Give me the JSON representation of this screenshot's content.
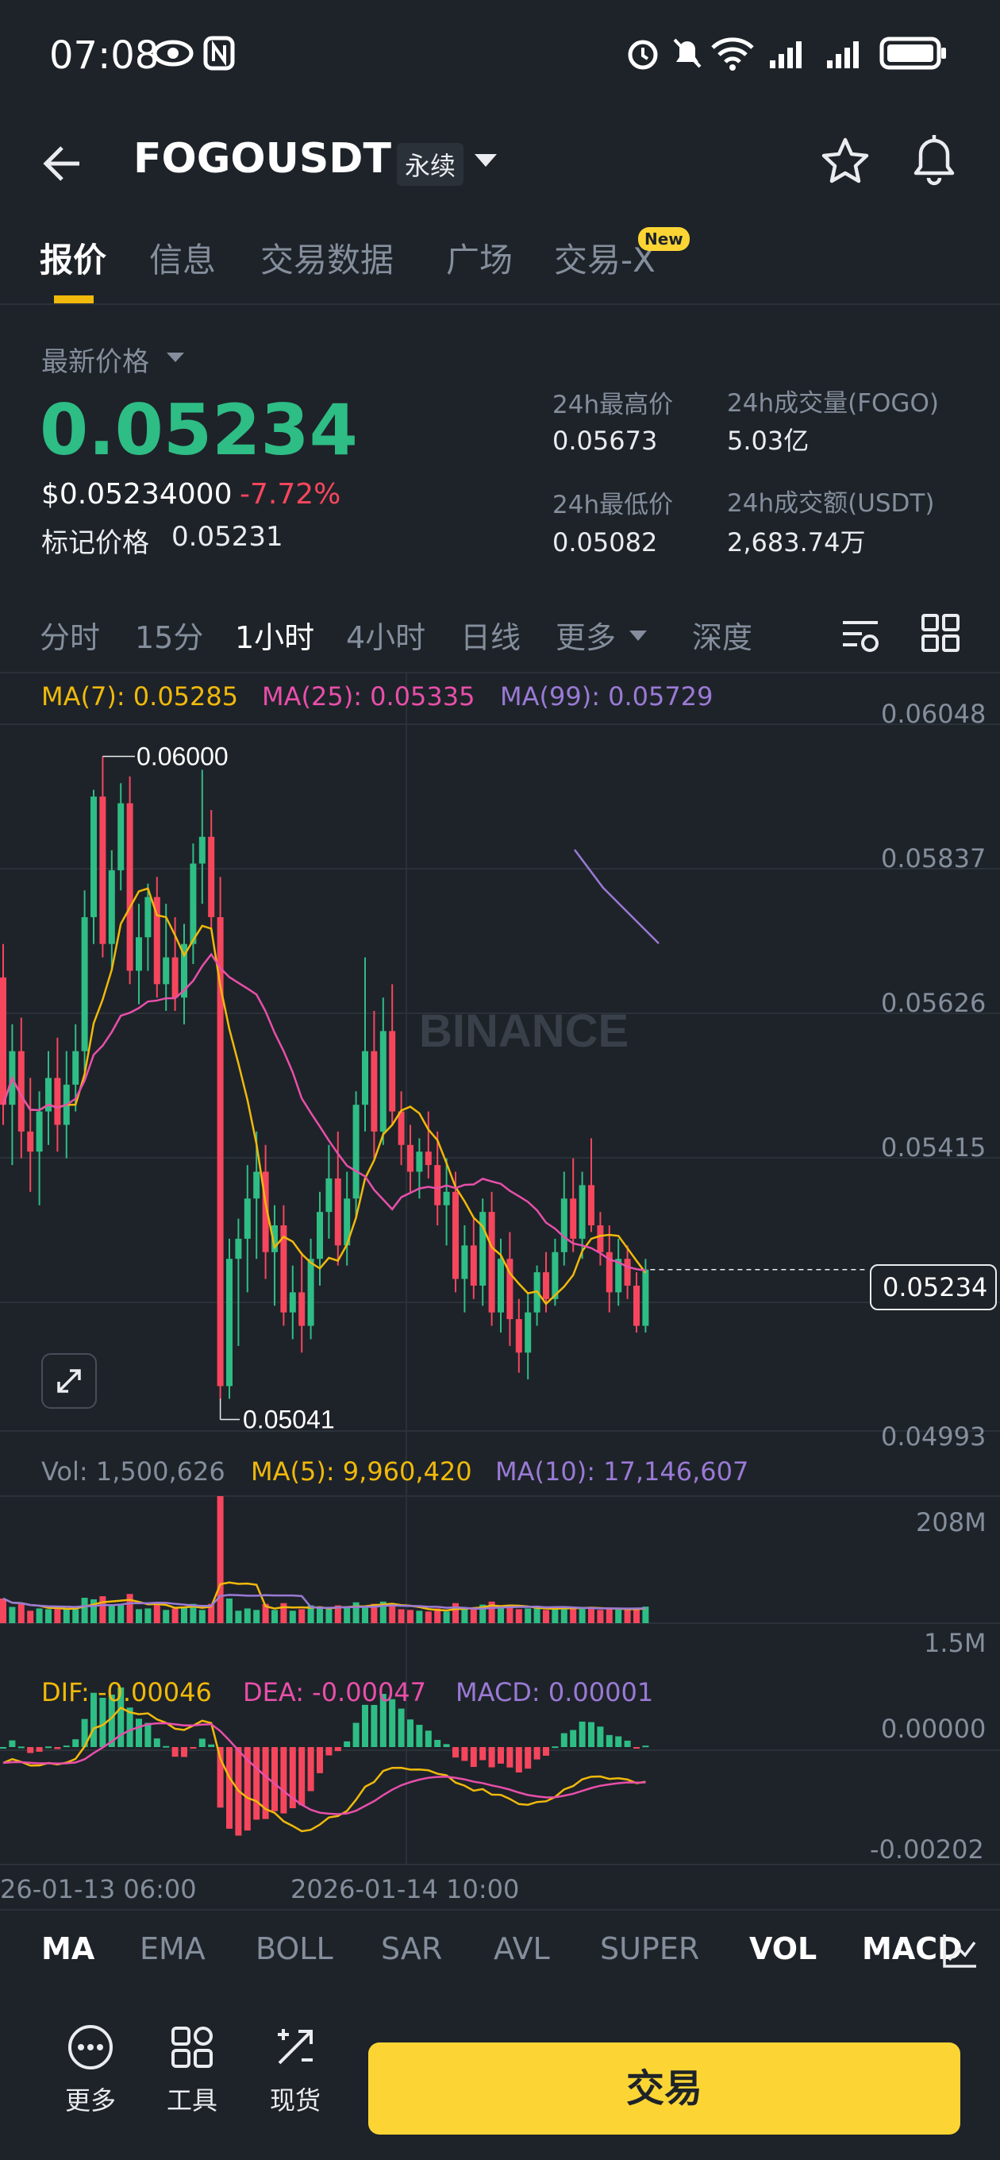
{
  "status_bar": {
    "time": "07:08"
  },
  "header": {
    "title": "FOGOUSDT",
    "badge": "永续"
  },
  "tabs": [
    {
      "label": "报价"
    },
    {
      "label": "信息"
    },
    {
      "label": "交易数据"
    },
    {
      "label": "广场"
    },
    {
      "label": "交易-X"
    }
  ],
  "new_badge": "New",
  "price": {
    "label": "最新价格",
    "last": "0.05234",
    "usd": "$0.05234000",
    "change": "-7.72%",
    "mark_label": "标记价格",
    "mark_value": "0.05231"
  },
  "stats": {
    "high_label": "24h最高价",
    "high_value": "0.05673",
    "low_label": "24h最低价",
    "low_value": "0.05082",
    "vol_label": "24h成交量(FOGO)",
    "vol_value": "5.03亿",
    "turnover_label": "24h成交额(USDT)",
    "turnover_value": "2,683.74万"
  },
  "intervals": [
    "分时",
    "15分",
    "1小时",
    "4小时",
    "日线",
    "更多",
    "深度"
  ],
  "ma_legend": {
    "ma7": "MA(7): 0.05285",
    "ma25": "MA(25): 0.05335",
    "ma99": "MA(99): 0.05729"
  },
  "price_axis": [
    "0.06048",
    "0.05837",
    "0.05626",
    "0.05415",
    "0.05234",
    "0.04993"
  ],
  "chart_labels": {
    "high": "0.06000",
    "low": "0.05041",
    "watermark": "BINANCE"
  },
  "vol_legend": {
    "vol": "Vol: 1,500,626",
    "ma5": "MA(5): 9,960,420",
    "ma10": "MA(10): 17,146,607"
  },
  "vol_axis": [
    "208M",
    "1.5M"
  ],
  "macd_legend": {
    "dif": "DIF: -0.00046",
    "dea": "DEA: -0.00047",
    "macd": "MACD: 0.00001"
  },
  "macd_axis": [
    "0.00000",
    "-0.00202"
  ],
  "time_axis": [
    "26-01-13 06:00",
    "2026-01-14 10:00"
  ],
  "indicators": [
    "MA",
    "EMA",
    "BOLL",
    "SAR",
    "AVL",
    "SUPER",
    "VOL",
    "MACD"
  ],
  "bottom_nav": {
    "more": "更多",
    "tools": "工具",
    "spot": "现货",
    "trade": "交易"
  },
  "colors": {
    "up": "#2ebd85",
    "down": "#f6465d",
    "ma7": "#f0b90b",
    "ma25": "#e84faa",
    "ma99": "#9a7ad6",
    "accent": "#fcd535"
  },
  "chart_data": {
    "type": "candlestick",
    "interval": "1h",
    "price_range": [
      0.04993,
      0.06048
    ],
    "candles": [
      [
        0.0567,
        0.0572,
        0.0545,
        0.0548
      ],
      [
        0.0548,
        0.056,
        0.0539,
        0.0556
      ],
      [
        0.0556,
        0.0561,
        0.054,
        0.0544
      ],
      [
        0.0544,
        0.0552,
        0.0535,
        0.0541
      ],
      [
        0.0541,
        0.055,
        0.0533,
        0.0547
      ],
      [
        0.0547,
        0.0556,
        0.0542,
        0.0552
      ],
      [
        0.0552,
        0.0558,
        0.0541,
        0.0545
      ],
      [
        0.0545,
        0.0556,
        0.054,
        0.0551
      ],
      [
        0.0551,
        0.056,
        0.0547,
        0.0556
      ],
      [
        0.0556,
        0.058,
        0.0553,
        0.0576
      ],
      [
        0.0576,
        0.0595,
        0.0572,
        0.0594
      ],
      [
        0.0594,
        0.06,
        0.057,
        0.0572
      ],
      [
        0.0572,
        0.0586,
        0.0568,
        0.0583
      ],
      [
        0.0583,
        0.0596,
        0.058,
        0.0593
      ],
      [
        0.0593,
        0.0597,
        0.0566,
        0.0568
      ],
      [
        0.0568,
        0.0578,
        0.0563,
        0.0573
      ],
      [
        0.0573,
        0.0581,
        0.0568,
        0.0579
      ],
      [
        0.0579,
        0.0582,
        0.0564,
        0.0566
      ],
      [
        0.0566,
        0.0578,
        0.0562,
        0.057
      ],
      [
        0.057,
        0.0576,
        0.0562,
        0.0564
      ],
      [
        0.0564,
        0.0575,
        0.056,
        0.0572
      ],
      [
        0.0572,
        0.0587,
        0.0569,
        0.0584
      ],
      [
        0.0584,
        0.0598,
        0.0578,
        0.0588
      ],
      [
        0.0588,
        0.0592,
        0.0574,
        0.0576
      ],
      [
        0.0576,
        0.0582,
        0.0504,
        0.0506
      ],
      [
        0.0506,
        0.0528,
        0.05041,
        0.0525
      ],
      [
        0.0525,
        0.0531,
        0.0512,
        0.0528
      ],
      [
        0.0528,
        0.0539,
        0.052,
        0.0534
      ],
      [
        0.0534,
        0.0544,
        0.0525,
        0.0538
      ],
      [
        0.0538,
        0.0542,
        0.0522,
        0.0526
      ],
      [
        0.0526,
        0.0533,
        0.0518,
        0.053
      ],
      [
        0.053,
        0.0533,
        0.0515,
        0.0517
      ],
      [
        0.0517,
        0.0524,
        0.0513,
        0.052
      ],
      [
        0.052,
        0.0526,
        0.0511,
        0.0515
      ],
      [
        0.0515,
        0.0528,
        0.0513,
        0.0525
      ],
      [
        0.0525,
        0.0535,
        0.0521,
        0.0532
      ],
      [
        0.0532,
        0.0542,
        0.0528,
        0.0537
      ],
      [
        0.0537,
        0.0544,
        0.0524,
        0.0527
      ],
      [
        0.0527,
        0.0538,
        0.0524,
        0.0534
      ],
      [
        0.0534,
        0.055,
        0.0531,
        0.0548
      ],
      [
        0.0548,
        0.057,
        0.0544,
        0.0556
      ],
      [
        0.0556,
        0.0562,
        0.054,
        0.0544
      ],
      [
        0.0544,
        0.0564,
        0.0542,
        0.0559
      ],
      [
        0.0559,
        0.0566,
        0.0545,
        0.0547
      ],
      [
        0.0547,
        0.055,
        0.0539,
        0.0542
      ],
      [
        0.0542,
        0.0545,
        0.0535,
        0.0538
      ],
      [
        0.0538,
        0.0543,
        0.0534,
        0.0541
      ],
      [
        0.0541,
        0.0547,
        0.0537,
        0.0539
      ],
      [
        0.0539,
        0.0544,
        0.053,
        0.0533
      ],
      [
        0.0533,
        0.054,
        0.0527,
        0.0535
      ],
      [
        0.0535,
        0.0538,
        0.052,
        0.0522
      ],
      [
        0.0522,
        0.053,
        0.0517,
        0.0527
      ],
      [
        0.0527,
        0.0531,
        0.0519,
        0.0521
      ],
      [
        0.0521,
        0.0534,
        0.0518,
        0.0532
      ],
      [
        0.0532,
        0.0535,
        0.0515,
        0.0517
      ],
      [
        0.0517,
        0.0528,
        0.0514,
        0.0525
      ],
      [
        0.0525,
        0.0529,
        0.0512,
        0.0516
      ],
      [
        0.0516,
        0.0519,
        0.0508,
        0.0511
      ],
      [
        0.0511,
        0.052,
        0.0507,
        0.0517
      ],
      [
        0.0517,
        0.0524,
        0.0515,
        0.0523
      ],
      [
        0.0523,
        0.0526,
        0.0517,
        0.0519
      ],
      [
        0.0519,
        0.0528,
        0.0518,
        0.0526
      ],
      [
        0.0526,
        0.0538,
        0.0524,
        0.0534
      ],
      [
        0.0534,
        0.054,
        0.0526,
        0.0528
      ],
      [
        0.0528,
        0.0538,
        0.0525,
        0.0536
      ],
      [
        0.0536,
        0.0543,
        0.0529,
        0.053
      ],
      [
        0.053,
        0.0532,
        0.0524,
        0.0526
      ],
      [
        0.0526,
        0.053,
        0.0517,
        0.052
      ],
      [
        0.052,
        0.0528,
        0.0518,
        0.0525
      ],
      [
        0.0525,
        0.0527,
        0.0519,
        0.0521
      ],
      [
        0.0521,
        0.0523,
        0.0514,
        0.0515
      ],
      [
        0.0515,
        0.0525,
        0.0514,
        0.05234
      ]
    ],
    "vol_range": [
      1500000,
      208000000
    ],
    "macd_range": [
      -0.00202,
      0.0
    ]
  }
}
